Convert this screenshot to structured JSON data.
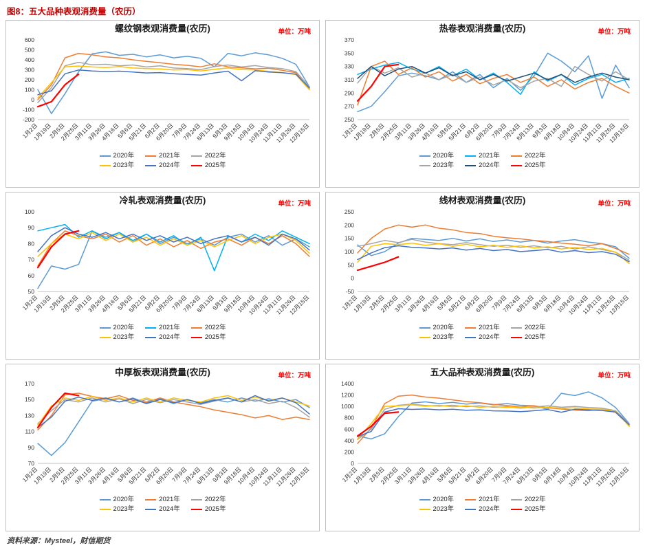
{
  "page": {
    "title": "图8：五大品种表观消费量（农历）",
    "source": "资料来源：Mysteel，财信期货"
  },
  "x_labels": [
    "1月2日",
    "1月19日",
    "2月5日",
    "2月25日",
    "3月11日",
    "3月26日",
    "4月16日",
    "5月6日",
    "5月21日",
    "6月2日",
    "6月20日",
    "7月9日",
    "7月24日",
    "8月13日",
    "9月3日",
    "9月18日",
    "10月4日",
    "10月24日",
    "11月11日",
    "11月26日",
    "12月15日"
  ],
  "chart_data": [
    {
      "type": "line",
      "title": "螺纹钢表观消费量(农历)",
      "unit": "单位：万吨",
      "ylim": [
        -200,
        600
      ],
      "yticks": [
        -200,
        -100,
        0,
        100,
        200,
        300,
        400,
        500,
        600
      ],
      "series": [
        {
          "name": "2020年",
          "color": "#5B9BD5",
          "values": [
            100,
            -140,
            60,
            280,
            460,
            480,
            445,
            455,
            430,
            450,
            420,
            435,
            415,
            330,
            465,
            440,
            470,
            450,
            415,
            355,
            130
          ]
        },
        {
          "name": "2021年",
          "color": "#ED7D31",
          "values": [
            0,
            150,
            420,
            465,
            450,
            430,
            420,
            400,
            385,
            370,
            355,
            345,
            330,
            360,
            330,
            320,
            310,
            315,
            295,
            270,
            105
          ]
        },
        {
          "name": "2022年",
          "color": "#A5A5A5",
          "values": [
            -30,
            120,
            340,
            375,
            350,
            355,
            340,
            348,
            328,
            340,
            318,
            312,
            302,
            332,
            348,
            328,
            342,
            322,
            312,
            282,
            130
          ]
        },
        {
          "name": "2023年",
          "color": "#FFC000",
          "values": [
            20,
            170,
            330,
            338,
            328,
            322,
            332,
            318,
            312,
            308,
            298,
            302,
            288,
            305,
            318,
            302,
            298,
            285,
            272,
            252,
            100
          ]
        },
        {
          "name": "2024年",
          "color": "#4472C4",
          "values": [
            50,
            90,
            260,
            298,
            288,
            282,
            286,
            278,
            268,
            272,
            260,
            254,
            246,
            268,
            286,
            190,
            290,
            278,
            270,
            256,
            118
          ]
        },
        {
          "name": "2025年",
          "color": "#FF0000",
          "values": [
            -70,
            -20,
            150,
            255
          ]
        }
      ]
    },
    {
      "type": "line",
      "title": "热卷表观消费量(农历)",
      "unit": "单位：万吨",
      "ylim": [
        250,
        370
      ],
      "yticks": [
        250,
        270,
        290,
        310,
        330,
        350,
        370
      ],
      "series": [
        {
          "name": "2020年",
          "color": "#5B9BD5",
          "values": [
            262,
            270,
            292,
            316,
            320,
            316,
            310,
            322,
            306,
            318,
            298,
            312,
            294,
            316,
            350,
            338,
            322,
            346,
            282,
            332,
            298
          ]
        },
        {
          "name": "2021年",
          "color": "#00B0F0",
          "values": [
            318,
            326,
            332,
            336,
            326,
            320,
            330,
            316,
            326,
            310,
            320,
            306,
            288,
            322,
            308,
            318,
            302,
            312,
            318,
            306,
            312
          ]
        },
        {
          "name": "2022年",
          "color": "#ED7D31",
          "values": [
            272,
            330,
            338,
            318,
            328,
            314,
            322,
            308,
            318,
            304,
            312,
            318,
            306,
            314,
            300,
            310,
            296,
            306,
            312,
            300,
            290
          ]
        },
        {
          "name": "2023年",
          "color": "#A5A5A5",
          "values": [
            305,
            330,
            320,
            328,
            314,
            320,
            310,
            318,
            306,
            314,
            302,
            310,
            298,
            308,
            312,
            300,
            330,
            318,
            308,
            322,
            310
          ]
        },
        {
          "name": "2024年",
          "color": "#1F4E79",
          "values": [
            312,
            330,
            316,
            326,
            330,
            320,
            328,
            316,
            322,
            310,
            318,
            308,
            314,
            320,
            310,
            318,
            306,
            314,
            320,
            314,
            310
          ]
        },
        {
          "name": "2025年",
          "color": "#FF0000",
          "values": [
            278,
            300,
            330,
            333
          ]
        }
      ]
    },
    {
      "type": "line",
      "title": "冷轧表观消费量(农历)",
      "unit": "单位：万吨",
      "ylim": [
        50,
        100
      ],
      "yticks": [
        50,
        60,
        70,
        80,
        90,
        100
      ],
      "series": [
        {
          "name": "2020年",
          "color": "#5B9BD5",
          "values": [
            52,
            66,
            64,
            67,
            88,
            84,
            87,
            81,
            86,
            80,
            84,
            80,
            83,
            79,
            84,
            86,
            81,
            85,
            79,
            83,
            78
          ]
        },
        {
          "name": "2021年",
          "color": "#00B0F0",
          "values": [
            88,
            90,
            92,
            84,
            88,
            83,
            87,
            82,
            86,
            81,
            85,
            79,
            84,
            63,
            85,
            81,
            86,
            82,
            88,
            84,
            80
          ]
        },
        {
          "name": "2022年",
          "color": "#ED7D31",
          "values": [
            66,
            80,
            88,
            85,
            83,
            86,
            81,
            85,
            79,
            83,
            78,
            82,
            77,
            81,
            83,
            79,
            84,
            80,
            85,
            80,
            72
          ]
        },
        {
          "name": "2023年",
          "color": "#FFC000",
          "values": [
            72,
            80,
            86,
            83,
            87,
            82,
            86,
            81,
            84,
            79,
            83,
            79,
            82,
            78,
            82,
            85,
            80,
            84,
            86,
            82,
            74
          ]
        },
        {
          "name": "2024年",
          "color": "#4472C4",
          "values": [
            75,
            85,
            90,
            86,
            84,
            87,
            83,
            86,
            82,
            85,
            81,
            84,
            80,
            83,
            85,
            81,
            84,
            79,
            86,
            83,
            76
          ]
        },
        {
          "name": "2025年",
          "color": "#FF0000",
          "values": [
            65,
            78,
            86,
            88
          ]
        }
      ]
    },
    {
      "type": "line",
      "title": "线材表观消费量(农历)",
      "unit": "单位：万吨",
      "ylim": [
        -50,
        250
      ],
      "yticks": [
        -50,
        0,
        50,
        100,
        150,
        200,
        250
      ],
      "series": [
        {
          "name": "2020年",
          "color": "#5B9BD5",
          "values": [
            125,
            85,
            100,
            132,
            150,
            146,
            142,
            150,
            140,
            148,
            138,
            144,
            136,
            142,
            132,
            140,
            145,
            136,
            130,
            118,
            75
          ]
        },
        {
          "name": "2021年",
          "color": "#ED7D31",
          "values": [
            95,
            150,
            185,
            200,
            192,
            200,
            188,
            182,
            172,
            168,
            158,
            152,
            148,
            142,
            138,
            132,
            128,
            122,
            130,
            112,
            90
          ]
        },
        {
          "name": "2022年",
          "color": "#A5A5A5",
          "values": [
            120,
            130,
            142,
            134,
            146,
            136,
            130,
            126,
            134,
            126,
            120,
            124,
            116,
            122,
            114,
            120,
            110,
            118,
            108,
            98,
            68
          ]
        },
        {
          "name": "2023年",
          "color": "#FFC000",
          "values": [
            60,
            120,
            130,
            126,
            132,
            124,
            130,
            120,
            128,
            118,
            124,
            116,
            122,
            114,
            118,
            110,
            116,
            108,
            112,
            98,
            55
          ]
        },
        {
          "name": "2024年",
          "color": "#4472C4",
          "values": [
            70,
            95,
            115,
            122,
            116,
            114,
            110,
            114,
            106,
            112,
            104,
            108,
            100,
            104,
            108,
            98,
            104,
            96,
            100,
            90,
            62
          ]
        },
        {
          "name": "2025年",
          "color": "#FF0000",
          "values": [
            30,
            45,
            60,
            80
          ]
        }
      ]
    },
    {
      "type": "line",
      "title": "中厚板表观消费量(农历)",
      "unit": "单位：万吨",
      "ylim": [
        70,
        170
      ],
      "yticks": [
        70,
        90,
        110,
        130,
        150,
        170
      ],
      "series": [
        {
          "name": "2020年",
          "color": "#5B9BD5",
          "values": [
            95,
            80,
            96,
            122,
            148,
            151,
            147,
            152,
            146,
            151,
            145,
            150,
            146,
            150,
            147,
            152,
            148,
            151,
            147,
            150,
            140
          ]
        },
        {
          "name": "2021年",
          "color": "#ED7D31",
          "values": [
            112,
            130,
            156,
            158,
            154,
            151,
            155,
            149,
            147,
            152,
            147,
            144,
            141,
            137,
            134,
            131,
            127,
            130,
            125,
            128,
            125
          ]
        },
        {
          "name": "2022年",
          "color": "#A5A5A5",
          "values": [
            120,
            136,
            150,
            147,
            152,
            147,
            151,
            145,
            150,
            146,
            150,
            147,
            144,
            148,
            152,
            147,
            150,
            145,
            148,
            140,
            128
          ]
        },
        {
          "name": "2023年",
          "color": "#FFC000",
          "values": [
            118,
            142,
            152,
            149,
            154,
            149,
            152,
            147,
            152,
            147,
            152,
            149,
            147,
            152,
            155,
            149,
            153,
            149,
            152,
            147,
            142
          ]
        },
        {
          "name": "2024年",
          "color": "#4472C4",
          "values": [
            115,
            128,
            148,
            153,
            149,
            152,
            147,
            151,
            145,
            150,
            146,
            150,
            145,
            149,
            152,
            147,
            155,
            148,
            152,
            146,
            132
          ]
        },
        {
          "name": "2025年",
          "color": "#FF0000",
          "values": [
            115,
            140,
            158,
            155
          ]
        }
      ]
    },
    {
      "type": "line",
      "title": "五大品种表观消费量(农历)",
      "unit": "单位：万吨",
      "ylim": [
        0,
        1400
      ],
      "yticks": [
        0,
        200,
        400,
        600,
        800,
        1000,
        1200,
        1400
      ],
      "series": [
        {
          "name": "2020年",
          "color": "#5B9BD5",
          "values": [
            480,
            430,
            520,
            820,
            1060,
            1080,
            1050,
            1070,
            1040,
            1060,
            1030,
            1050,
            1020,
            1010,
            950,
            1230,
            1190,
            1255,
            1150,
            980,
            700
          ]
        },
        {
          "name": "2021年",
          "color": "#ED7D31",
          "values": [
            350,
            620,
            1050,
            1180,
            1200,
            1165,
            1145,
            1115,
            1085,
            1065,
            1035,
            1015,
            995,
            1010,
            975,
            955,
            935,
            925,
            950,
            895,
            660
          ]
        },
        {
          "name": "2022年",
          "color": "#A5A5A5",
          "values": [
            420,
            600,
            950,
            1020,
            1040,
            1015,
            1005,
            1020,
            995,
            1010,
            985,
            995,
            970,
            990,
            1010,
            985,
            1000,
            980,
            970,
            925,
            700
          ]
        },
        {
          "name": "2023年",
          "color": "#FFC000",
          "values": [
            430,
            700,
            1000,
            1010,
            1030,
            1005,
            1020,
            995,
            1010,
            985,
            1000,
            980,
            990,
            970,
            985,
            965,
            975,
            955,
            950,
            915,
            650
          ]
        },
        {
          "name": "2024年",
          "color": "#4472C4",
          "values": [
            470,
            560,
            900,
            960,
            948,
            955,
            940,
            950,
            932,
            940,
            922,
            918,
            908,
            925,
            945,
            898,
            950,
            938,
            928,
            902,
            680
          ]
        },
        {
          "name": "2025年",
          "color": "#FF0000",
          "values": [
            480,
            650,
            880,
            900
          ]
        }
      ]
    }
  ]
}
